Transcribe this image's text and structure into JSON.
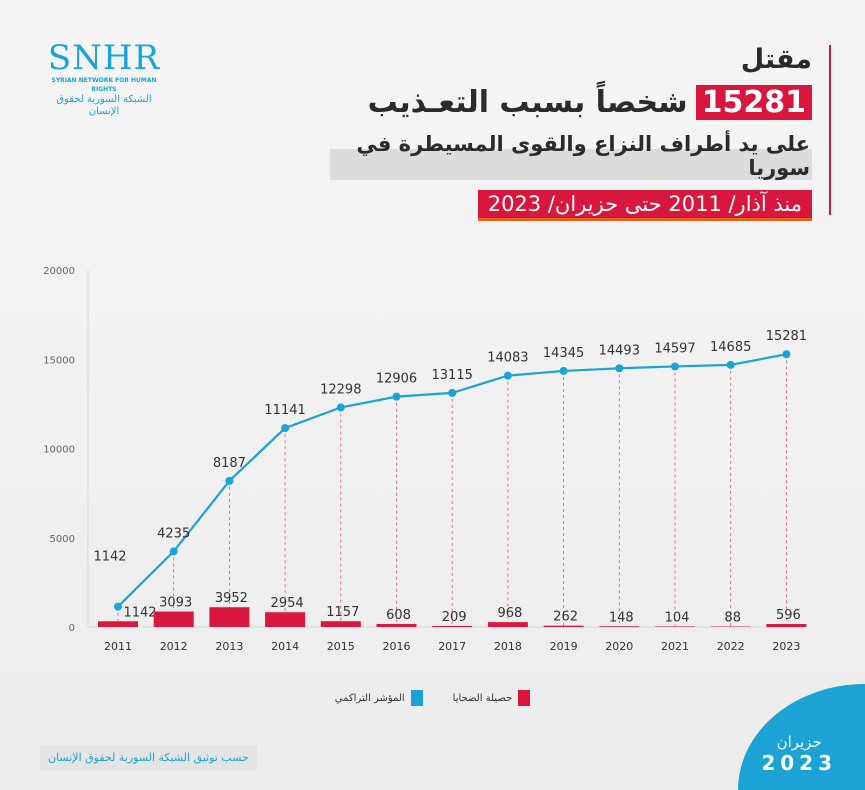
{
  "logo": {
    "text": "SNHR",
    "en": "SYRIAN NETWORK FOR HUMAN RIGHTS",
    "ar": "الشبكة السورية لحقوق الإنسان"
  },
  "header": {
    "line1": "مقتل",
    "highlight_number": "15281",
    "line2": "شخصاً بسبب التعـذيب",
    "line3": "على يد أطراف النزاع والقوى المسيطرة في سوريا",
    "line4": "منذ آذار/ 2011 حتى حزيران/ 2023"
  },
  "colors": {
    "cumulative": "#1ba3d6",
    "annual": "#d9163e"
  },
  "chart_data": {
    "type": "bar+line",
    "categories": [
      "2011",
      "2012",
      "2013",
      "2014",
      "2015",
      "2016",
      "2017",
      "2018",
      "2019",
      "2020",
      "2021",
      "2022",
      "2023"
    ],
    "series": [
      {
        "name": "حصيلة الضحايا",
        "type": "bar",
        "values": [
          1142,
          3093,
          3952,
          2954,
          1157,
          608,
          209,
          968,
          262,
          148,
          104,
          88,
          596
        ]
      },
      {
        "name": "المؤشر التراكمي",
        "type": "line",
        "values": [
          1142,
          4235,
          8187,
          11141,
          12298,
          12906,
          13115,
          14083,
          14345,
          14493,
          14597,
          14685,
          15281
        ]
      }
    ],
    "yticks": [
      "0",
      "5000",
      "10000",
      "15000",
      "20000"
    ],
    "ylim": [
      0,
      20000
    ],
    "grid": false,
    "legend": "bottom"
  },
  "footer": {
    "source": "حسب توثيق الشبكة السورية لحقوق الإنسان",
    "month": "حزيران",
    "year": "2023"
  }
}
